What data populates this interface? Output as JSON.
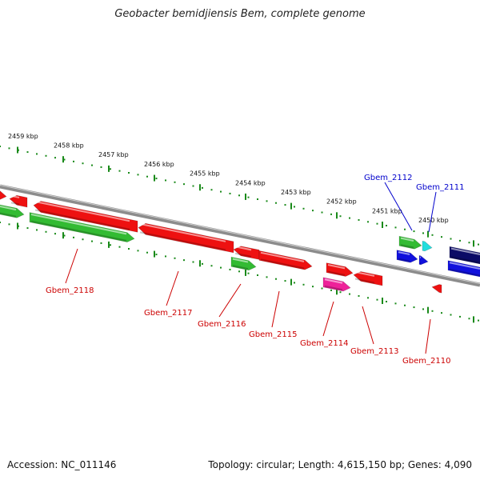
{
  "title": "Geobacter bemidjiensis Bem, complete genome",
  "footer": {
    "accession": "Accession: NC_011146",
    "summary": "Topology: circular; Length: 4,615,150 bp; Genes: 4,090"
  },
  "colors": {
    "backbone": "#8c8c8c",
    "tick": "#1a8a1a",
    "red_label": "#cc0000",
    "blue_label": "#0000cc",
    "red_gene": "#ee1111",
    "green_gene": "#33bb33",
    "blue_gene": "#1111dd",
    "cyan_gene": "#22dddd",
    "pink_gene": "#ee2299",
    "navy_gene": "#0b0b66"
  },
  "scale": {
    "upper_labels": [
      "2459 kbp",
      "2458 kbp",
      "2457 kbp",
      "2456 kbp",
      "2455 kbp",
      "2454 kbp",
      "2453 kbp",
      "2452 kbp",
      "2451 kbp",
      "2450 kbp"
    ]
  },
  "gene_labels": [
    {
      "text": "Gbem_2118",
      "color": "red"
    },
    {
      "text": "Gbem_2117",
      "color": "red"
    },
    {
      "text": "Gbem_2116",
      "color": "red"
    },
    {
      "text": "Gbem_2115",
      "color": "red"
    },
    {
      "text": "Gbem_2114",
      "color": "red"
    },
    {
      "text": "Gbem_2113",
      "color": "red"
    },
    {
      "text": "Gbem_2110",
      "color": "red"
    },
    {
      "text": "Gbem_2112",
      "color": "blue"
    },
    {
      "text": "Gbem_2111",
      "color": "blue"
    }
  ]
}
